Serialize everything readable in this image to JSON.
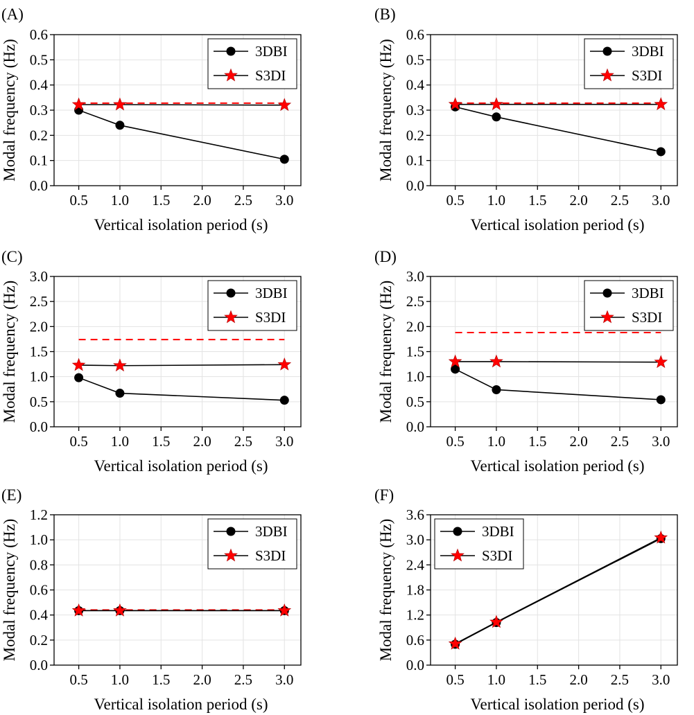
{
  "figure": {
    "panels": [
      {
        "label": "(A)",
        "ylabel": "Modal frequency (Hz)",
        "xlabel": "Vertical isolation period (s)"
      },
      {
        "label": "(B)",
        "ylabel": "Modal frequency (Hz)",
        "xlabel": "Vertical isolation period (s)"
      },
      {
        "label": "(C)",
        "ylabel": "Modal frequency (Hz)",
        "xlabel": "Vertical isolation period (s)"
      },
      {
        "label": "(D)",
        "ylabel": "Modal frequency (Hz)",
        "xlabel": "Vertical isolation period (s)"
      },
      {
        "label": "(E)",
        "ylabel": "Modal frequency (Hz)",
        "xlabel": "Vertical isolation period (s)"
      },
      {
        "label": "(F)",
        "ylabel": "Modal frequency (Hz)",
        "xlabel": "Vertical isolation period (s)"
      }
    ]
  },
  "colors": {
    "series_3dbi": "#000000",
    "series_s3di": "#ff0000",
    "grid": "#e3e3e3"
  },
  "chart_data": [
    {
      "panel": "(A)",
      "type": "line",
      "xlabel": "Vertical isolation period (s)",
      "ylabel": "Modal frequency (Hz)",
      "xlim": [
        0.2,
        3.2
      ],
      "ylim": [
        0,
        0.6
      ],
      "xticks": [
        "0.5",
        "1.0",
        "1.5",
        "2.0",
        "2.5",
        "3.0"
      ],
      "yticks": [
        "0.0",
        "0.1",
        "0.2",
        "0.3",
        "0.4",
        "0.5",
        "0.6"
      ],
      "legend_position": "top-right",
      "grid": true,
      "x": [
        0.5,
        1.0,
        3.0
      ],
      "series": [
        {
          "name": "3DBI",
          "marker": "circle",
          "values": [
            0.3,
            0.24,
            0.105
          ]
        },
        {
          "name": "S3DI",
          "marker": "star",
          "values": [
            0.322,
            0.322,
            0.32
          ]
        }
      ],
      "reference_line": {
        "style": "dashed",
        "value": 0.328
      }
    },
    {
      "panel": "(B)",
      "type": "line",
      "xlabel": "Vertical isolation period (s)",
      "ylabel": "Modal frequency (Hz)",
      "xlim": [
        0.2,
        3.2
      ],
      "ylim": [
        0,
        0.6
      ],
      "xticks": [
        "0.5",
        "1.0",
        "1.5",
        "2.0",
        "2.5",
        "3.0"
      ],
      "yticks": [
        "0.0",
        "0.1",
        "0.2",
        "0.3",
        "0.4",
        "0.5",
        "0.6"
      ],
      "legend_position": "top-right",
      "grid": true,
      "x": [
        0.5,
        1.0,
        3.0
      ],
      "series": [
        {
          "name": "3DBI",
          "marker": "circle",
          "values": [
            0.313,
            0.273,
            0.135
          ]
        },
        {
          "name": "S3DI",
          "marker": "star",
          "values": [
            0.323,
            0.323,
            0.323
          ]
        }
      ],
      "reference_line": {
        "style": "dashed",
        "value": 0.328
      }
    },
    {
      "panel": "(C)",
      "type": "line",
      "xlabel": "Vertical isolation period (s)",
      "ylabel": "Modal frequency (Hz)",
      "xlim": [
        0.2,
        3.2
      ],
      "ylim": [
        0,
        3.0
      ],
      "xticks": [
        "0.5",
        "1.0",
        "1.5",
        "2.0",
        "2.5",
        "3.0"
      ],
      "yticks": [
        "0.0",
        "0.5",
        "1.0",
        "1.5",
        "2.0",
        "2.5",
        "3.0"
      ],
      "legend_position": "top-right",
      "grid": true,
      "x": [
        0.5,
        1.0,
        3.0
      ],
      "series": [
        {
          "name": "3DBI",
          "marker": "circle",
          "values": [
            0.98,
            0.67,
            0.53
          ]
        },
        {
          "name": "S3DI",
          "marker": "star",
          "values": [
            1.23,
            1.22,
            1.24
          ]
        }
      ],
      "reference_line": {
        "style": "dashed",
        "value": 1.74
      }
    },
    {
      "panel": "(D)",
      "type": "line",
      "xlabel": "Vertical isolation period (s)",
      "ylabel": "Modal frequency (Hz)",
      "xlim": [
        0.2,
        3.2
      ],
      "ylim": [
        0,
        3.0
      ],
      "xticks": [
        "0.5",
        "1.0",
        "1.5",
        "2.0",
        "2.5",
        "3.0"
      ],
      "yticks": [
        "0.0",
        "0.5",
        "1.0",
        "1.5",
        "2.0",
        "2.5",
        "3.0"
      ],
      "legend_position": "top-right",
      "grid": true,
      "x": [
        0.5,
        1.0,
        3.0
      ],
      "series": [
        {
          "name": "3DBI",
          "marker": "circle",
          "values": [
            1.15,
            0.74,
            0.54
          ]
        },
        {
          "name": "S3DI",
          "marker": "star",
          "values": [
            1.3,
            1.3,
            1.29
          ]
        }
      ],
      "reference_line": {
        "style": "dashed",
        "value": 1.88
      }
    },
    {
      "panel": "(E)",
      "type": "line",
      "xlabel": "Vertical isolation period (s)",
      "ylabel": "Modal frequency (Hz)",
      "xlim": [
        0.2,
        3.2
      ],
      "ylim": [
        0,
        1.2
      ],
      "xticks": [
        "0.5",
        "1.0",
        "1.5",
        "2.0",
        "2.5",
        "3.0"
      ],
      "yticks": [
        "0.0",
        "0.2",
        "0.4",
        "0.6",
        "0.8",
        "1.0",
        "1.2"
      ],
      "legend_position": "top-right",
      "grid": true,
      "x": [
        0.5,
        1.0,
        3.0
      ],
      "series": [
        {
          "name": "3DBI",
          "marker": "circle",
          "values": [
            0.435,
            0.435,
            0.435
          ]
        },
        {
          "name": "S3DI",
          "marker": "star",
          "values": [
            0.435,
            0.435,
            0.435
          ]
        }
      ],
      "reference_line": {
        "style": "dashed",
        "value": 0.44
      }
    },
    {
      "panel": "(F)",
      "type": "line",
      "xlabel": "Vertical isolation period (s)",
      "ylabel": "Modal frequency (Hz)",
      "xlim": [
        0.2,
        3.2
      ],
      "ylim": [
        0,
        3.6
      ],
      "xticks": [
        "0.5",
        "1.0",
        "1.5",
        "2.0",
        "2.5",
        "3.0"
      ],
      "yticks": [
        "0.0",
        "0.6",
        "1.2",
        "1.8",
        "2.4",
        "3.0",
        "3.6"
      ],
      "legend_position": "top-left",
      "grid": true,
      "x": [
        0.5,
        1.0,
        3.0
      ],
      "series": [
        {
          "name": "3DBI",
          "marker": "circle",
          "values": [
            0.5,
            1.02,
            3.03
          ]
        },
        {
          "name": "S3DI",
          "marker": "star",
          "values": [
            0.51,
            1.03,
            3.05
          ]
        }
      ],
      "reference_line": null
    }
  ]
}
